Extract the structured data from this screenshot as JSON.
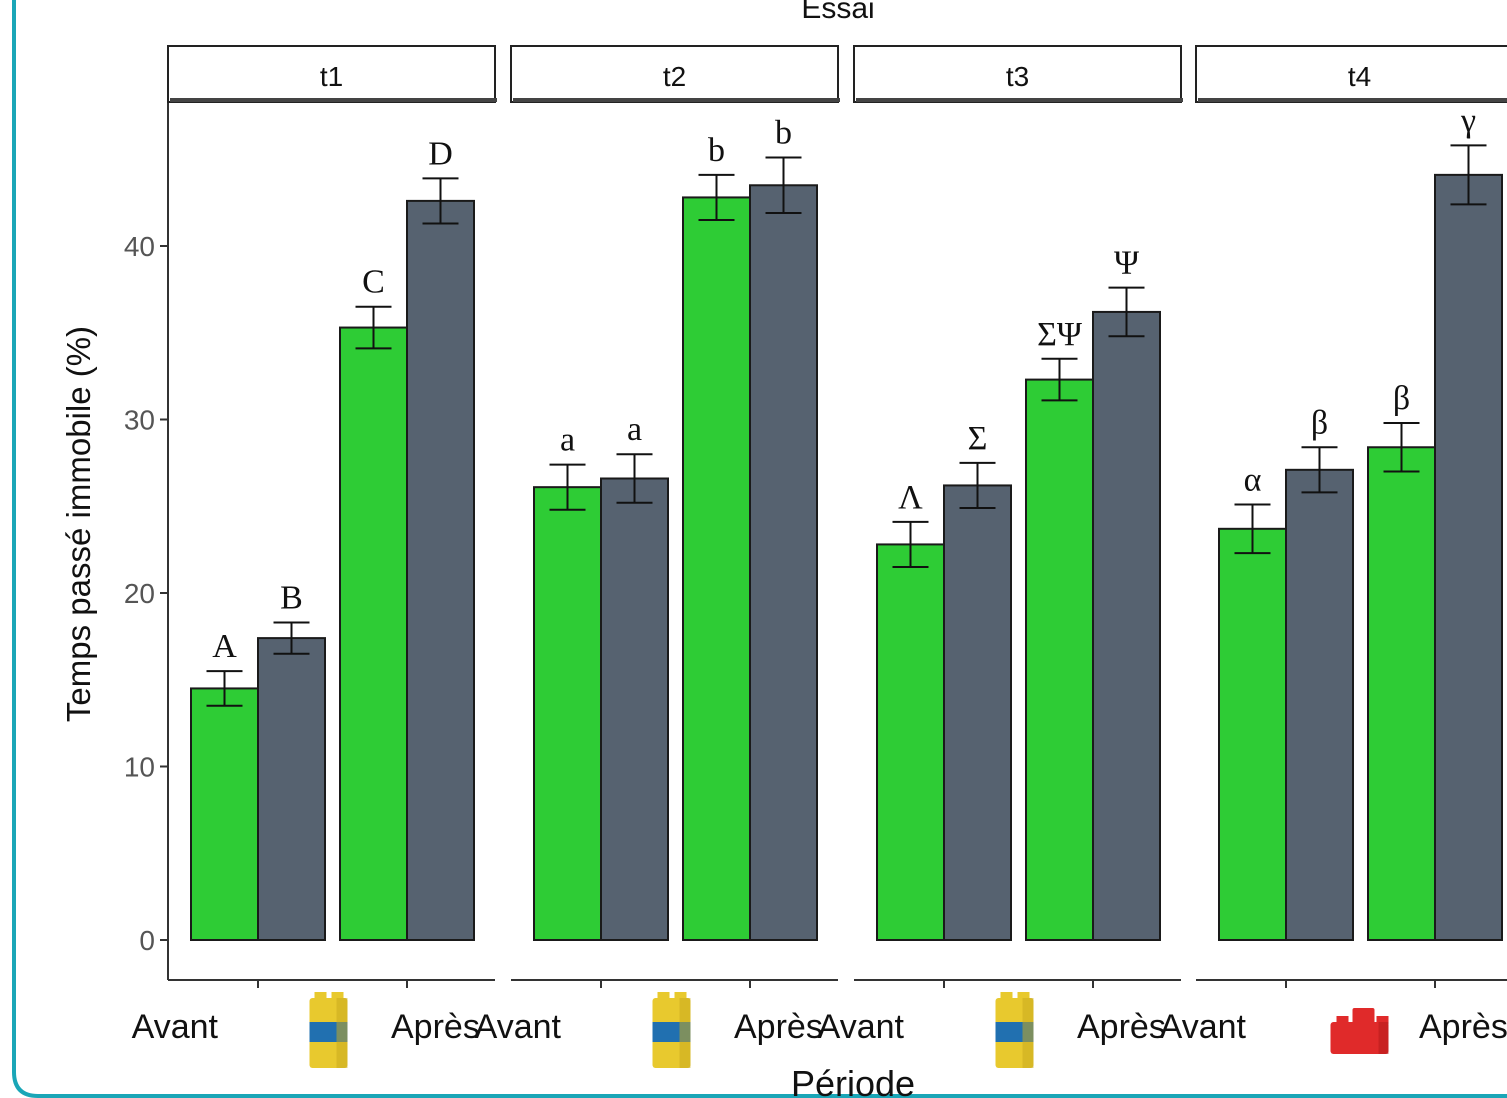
{
  "chart_data": {
    "type": "bar",
    "title": "Essai",
    "xlabel": "Période",
    "ylabel": "Temps passé immobile (%)",
    "ylim": [
      0,
      48
    ],
    "yticks": [
      0,
      10,
      20,
      30,
      40
    ],
    "grid": false,
    "legend": "none",
    "colors": {
      "green": "#2ecc35",
      "slate": "#566270"
    },
    "x_tick_labels": [
      "Avant",
      "Après"
    ],
    "panels": [
      {
        "name": "t1",
        "x_icon": "yellow-blue-brick-icon",
        "groups": [
          {
            "period": "Avant",
            "bars": [
              {
                "color": "green",
                "value": 14.5,
                "err": 1.0,
                "letter": "A"
              },
              {
                "color": "slate",
                "value": 17.4,
                "err": 0.9,
                "letter": "B"
              }
            ]
          },
          {
            "period": "Après",
            "bars": [
              {
                "color": "green",
                "value": 35.3,
                "err": 1.2,
                "letter": "C"
              },
              {
                "color": "slate",
                "value": 42.6,
                "err": 1.3,
                "letter": "D"
              }
            ]
          }
        ]
      },
      {
        "name": "t2",
        "x_icon": "yellow-blue-brick-icon",
        "groups": [
          {
            "period": "Avant",
            "bars": [
              {
                "color": "green",
                "value": 26.1,
                "err": 1.3,
                "letter": "a"
              },
              {
                "color": "slate",
                "value": 26.6,
                "err": 1.4,
                "letter": "a"
              }
            ]
          },
          {
            "period": "Après",
            "bars": [
              {
                "color": "green",
                "value": 42.8,
                "err": 1.3,
                "letter": "b"
              },
              {
                "color": "slate",
                "value": 43.5,
                "err": 1.6,
                "letter": "b"
              }
            ]
          }
        ]
      },
      {
        "name": "t3",
        "x_icon": "yellow-blue-brick-icon",
        "groups": [
          {
            "period": "Avant",
            "bars": [
              {
                "color": "green",
                "value": 22.8,
                "err": 1.3,
                "letter": "Λ"
              },
              {
                "color": "slate",
                "value": 26.2,
                "err": 1.3,
                "letter": "Σ"
              }
            ]
          },
          {
            "period": "Après",
            "bars": [
              {
                "color": "green",
                "value": 32.3,
                "err": 1.2,
                "letter": "ΣΨ"
              },
              {
                "color": "slate",
                "value": 36.2,
                "err": 1.4,
                "letter": "Ψ"
              }
            ]
          }
        ]
      },
      {
        "name": "t4",
        "x_icon": "red-brick-icon",
        "groups": [
          {
            "period": "Avant",
            "bars": [
              {
                "color": "green",
                "value": 23.7,
                "err": 1.4,
                "letter": "α"
              },
              {
                "color": "slate",
                "value": 27.1,
                "err": 1.3,
                "letter": "β"
              }
            ]
          },
          {
            "period": "Après",
            "bars": [
              {
                "color": "green",
                "value": 28.4,
                "err": 1.4,
                "letter": "β"
              },
              {
                "color": "slate",
                "value": 44.1,
                "err": 1.7,
                "letter": "γ"
              }
            ]
          }
        ]
      }
    ]
  }
}
